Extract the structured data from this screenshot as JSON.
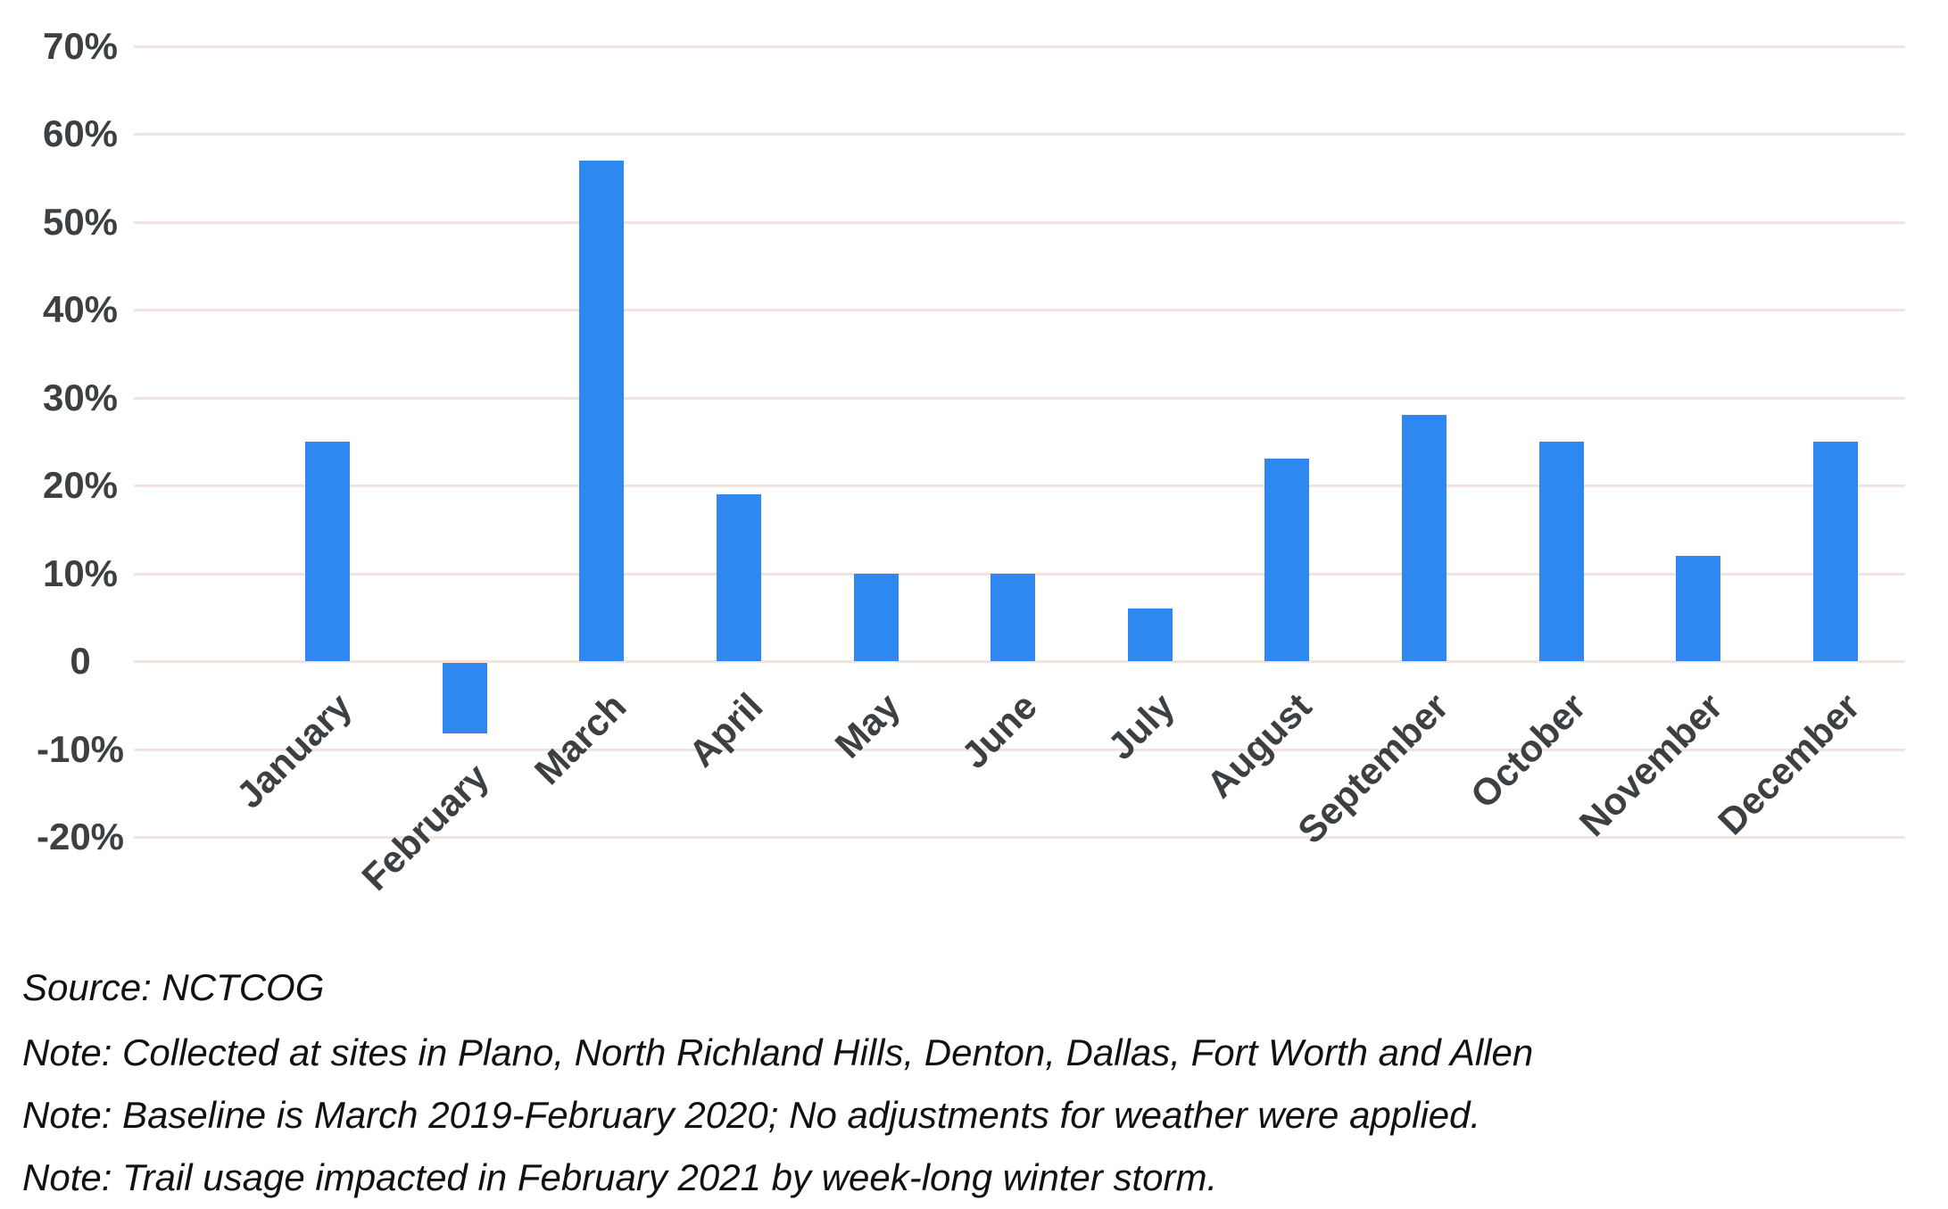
{
  "chart_data": {
    "type": "bar",
    "title": "",
    "categories": [
      "January",
      "February",
      "March",
      "April",
      "May",
      "June",
      "July",
      "August",
      "September",
      "October",
      "November",
      "December"
    ],
    "values": [
      25,
      -8,
      57,
      19,
      10,
      10,
      6,
      23,
      28,
      25,
      12,
      25
    ],
    "unit": "%",
    "xlabel": "",
    "ylabel": "",
    "ylim": [
      -20,
      70
    ],
    "ytick_step": 10,
    "ytick_values": [
      70,
      60,
      50,
      40,
      30,
      20,
      10,
      0,
      -10,
      -20
    ],
    "ytick_labels": [
      "70%",
      "60%",
      "50%",
      "40%",
      "30%",
      "20%",
      "10%",
      "0",
      "-10%",
      "-20%"
    ],
    "grid": true,
    "legend_position": "none",
    "x_labels_rotated_degrees": 45
  },
  "colors": {
    "bar": "#2F88F0",
    "gridline": "#F2E3DF",
    "axis_label": "#3C4043",
    "footer_text": "#111111",
    "background": "#FFFFFF"
  },
  "footer": {
    "source": "Source: NCTCOG",
    "notes": [
      "Note: Collected at sites in Plano, North Richland Hills, Denton, Dallas, Fort Worth and Allen",
      "Note: Baseline is March 2019-February 2020; No adjustments for weather were applied.",
      "Note: Trail usage impacted in February 2021 by week-long winter storm."
    ]
  }
}
